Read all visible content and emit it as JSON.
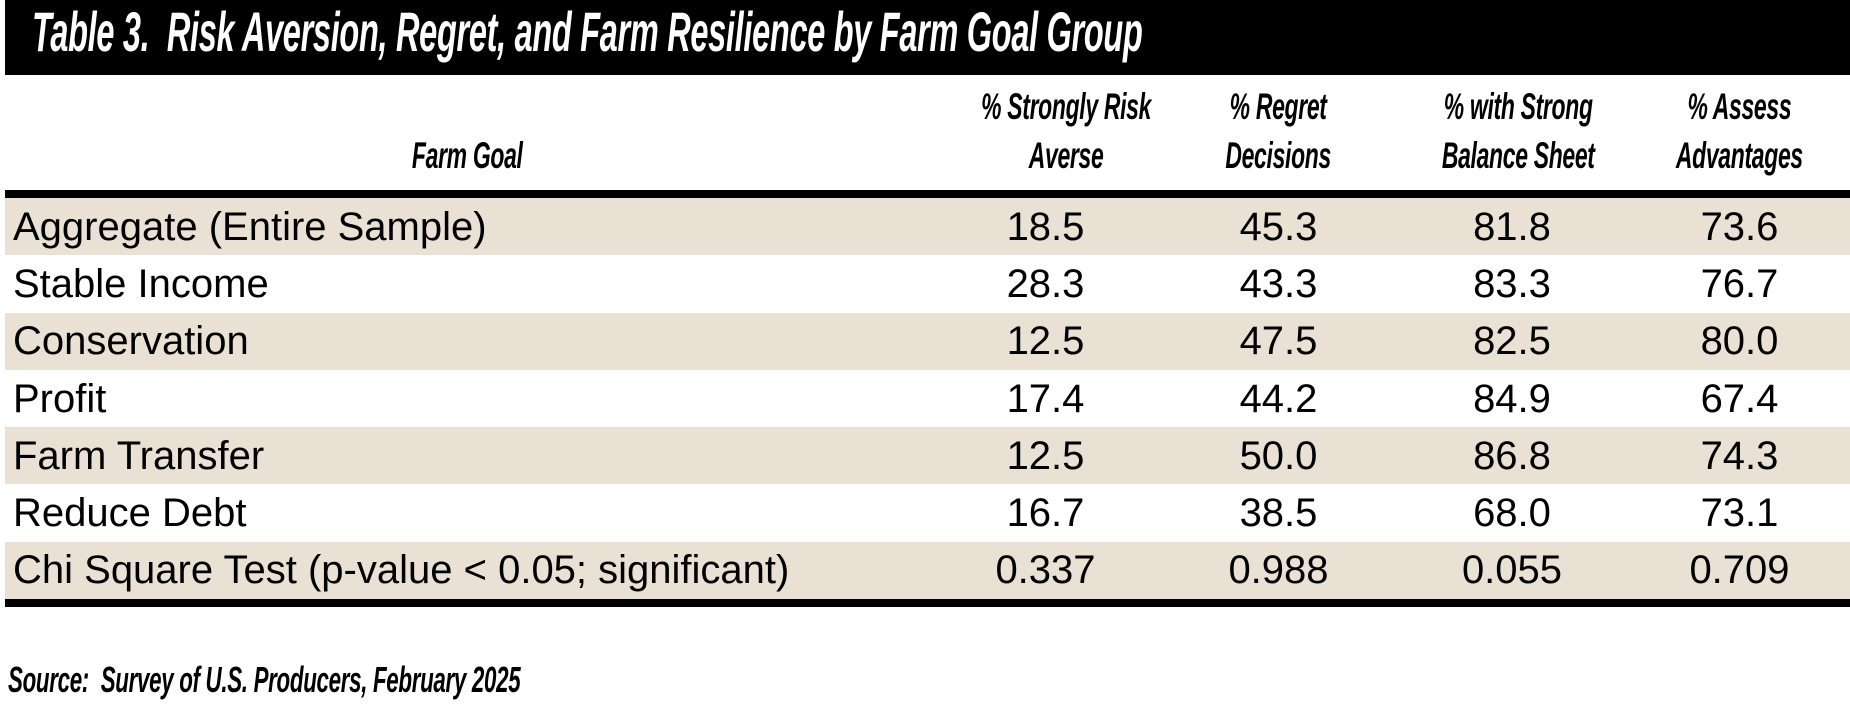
{
  "title_bar": {
    "text": "Table 3.  Risk Aversion, Regret, and Farm Resilience by Farm Goal Group",
    "bg_color": "#000000",
    "text_color": "#ffffff"
  },
  "table": {
    "header": {
      "farm_goal": "Farm Goal",
      "columns": [
        {
          "line1": "% Strongly Risk",
          "line2": "Averse"
        },
        {
          "line1": "% Regret",
          "line2": "Decisions"
        },
        {
          "line1": "% with Strong",
          "line2": "Balance Sheet"
        },
        {
          "line1": "% Assess",
          "line2": "Advantages"
        }
      ]
    },
    "rows": [
      {
        "label": "Aggregate (Entire Sample)",
        "values": [
          "18.5",
          "45.3",
          "81.8",
          "73.6"
        ]
      },
      {
        "label": "Stable Income",
        "values": [
          "28.3",
          "43.3",
          "83.3",
          "76.7"
        ]
      },
      {
        "label": "Conservation",
        "values": [
          "12.5",
          "47.5",
          "82.5",
          "80.0"
        ]
      },
      {
        "label": "Profit",
        "values": [
          "17.4",
          "44.2",
          "84.9",
          "67.4"
        ]
      },
      {
        "label": "Farm Transfer",
        "values": [
          "12.5",
          "50.0",
          "86.8",
          "74.3"
        ]
      },
      {
        "label": "Reduce Debt",
        "values": [
          "16.7",
          "38.5",
          "68.0",
          "73.1"
        ]
      },
      {
        "label": "Chi Square Test (p-value < 0.05; significant)",
        "values": [
          "0.337",
          "0.988",
          "0.055",
          "0.709"
        ]
      }
    ],
    "colors": {
      "stripe_row_bg": "#e9e1d3",
      "plain_row_bg": "#ffffff",
      "rule_color": "#000000"
    }
  },
  "source_note": "Source:  Survey of U.S. Producers, February 2025",
  "chart_data": {
    "type": "table",
    "title": "Table 3. Risk Aversion, Regret, and Farm Resilience by Farm Goal Group",
    "columns": [
      "Farm Goal",
      "% Strongly Risk Averse",
      "% Regret Decisions",
      "% with Strong Balance Sheet",
      "% Assess Advantages"
    ],
    "rows": [
      [
        "Aggregate (Entire Sample)",
        18.5,
        45.3,
        81.8,
        73.6
      ],
      [
        "Stable Income",
        28.3,
        43.3,
        83.3,
        76.7
      ],
      [
        "Conservation",
        12.5,
        47.5,
        82.5,
        80.0
      ],
      [
        "Profit",
        17.4,
        44.2,
        84.9,
        67.4
      ],
      [
        "Farm Transfer",
        12.5,
        50.0,
        86.8,
        74.3
      ],
      [
        "Reduce Debt",
        16.7,
        38.5,
        68.0,
        73.1
      ],
      [
        "Chi Square Test (p-value < 0.05; significant)",
        0.337,
        0.988,
        0.055,
        0.709
      ]
    ],
    "source": "Source: Survey of U.S. Producers, February 2025"
  }
}
